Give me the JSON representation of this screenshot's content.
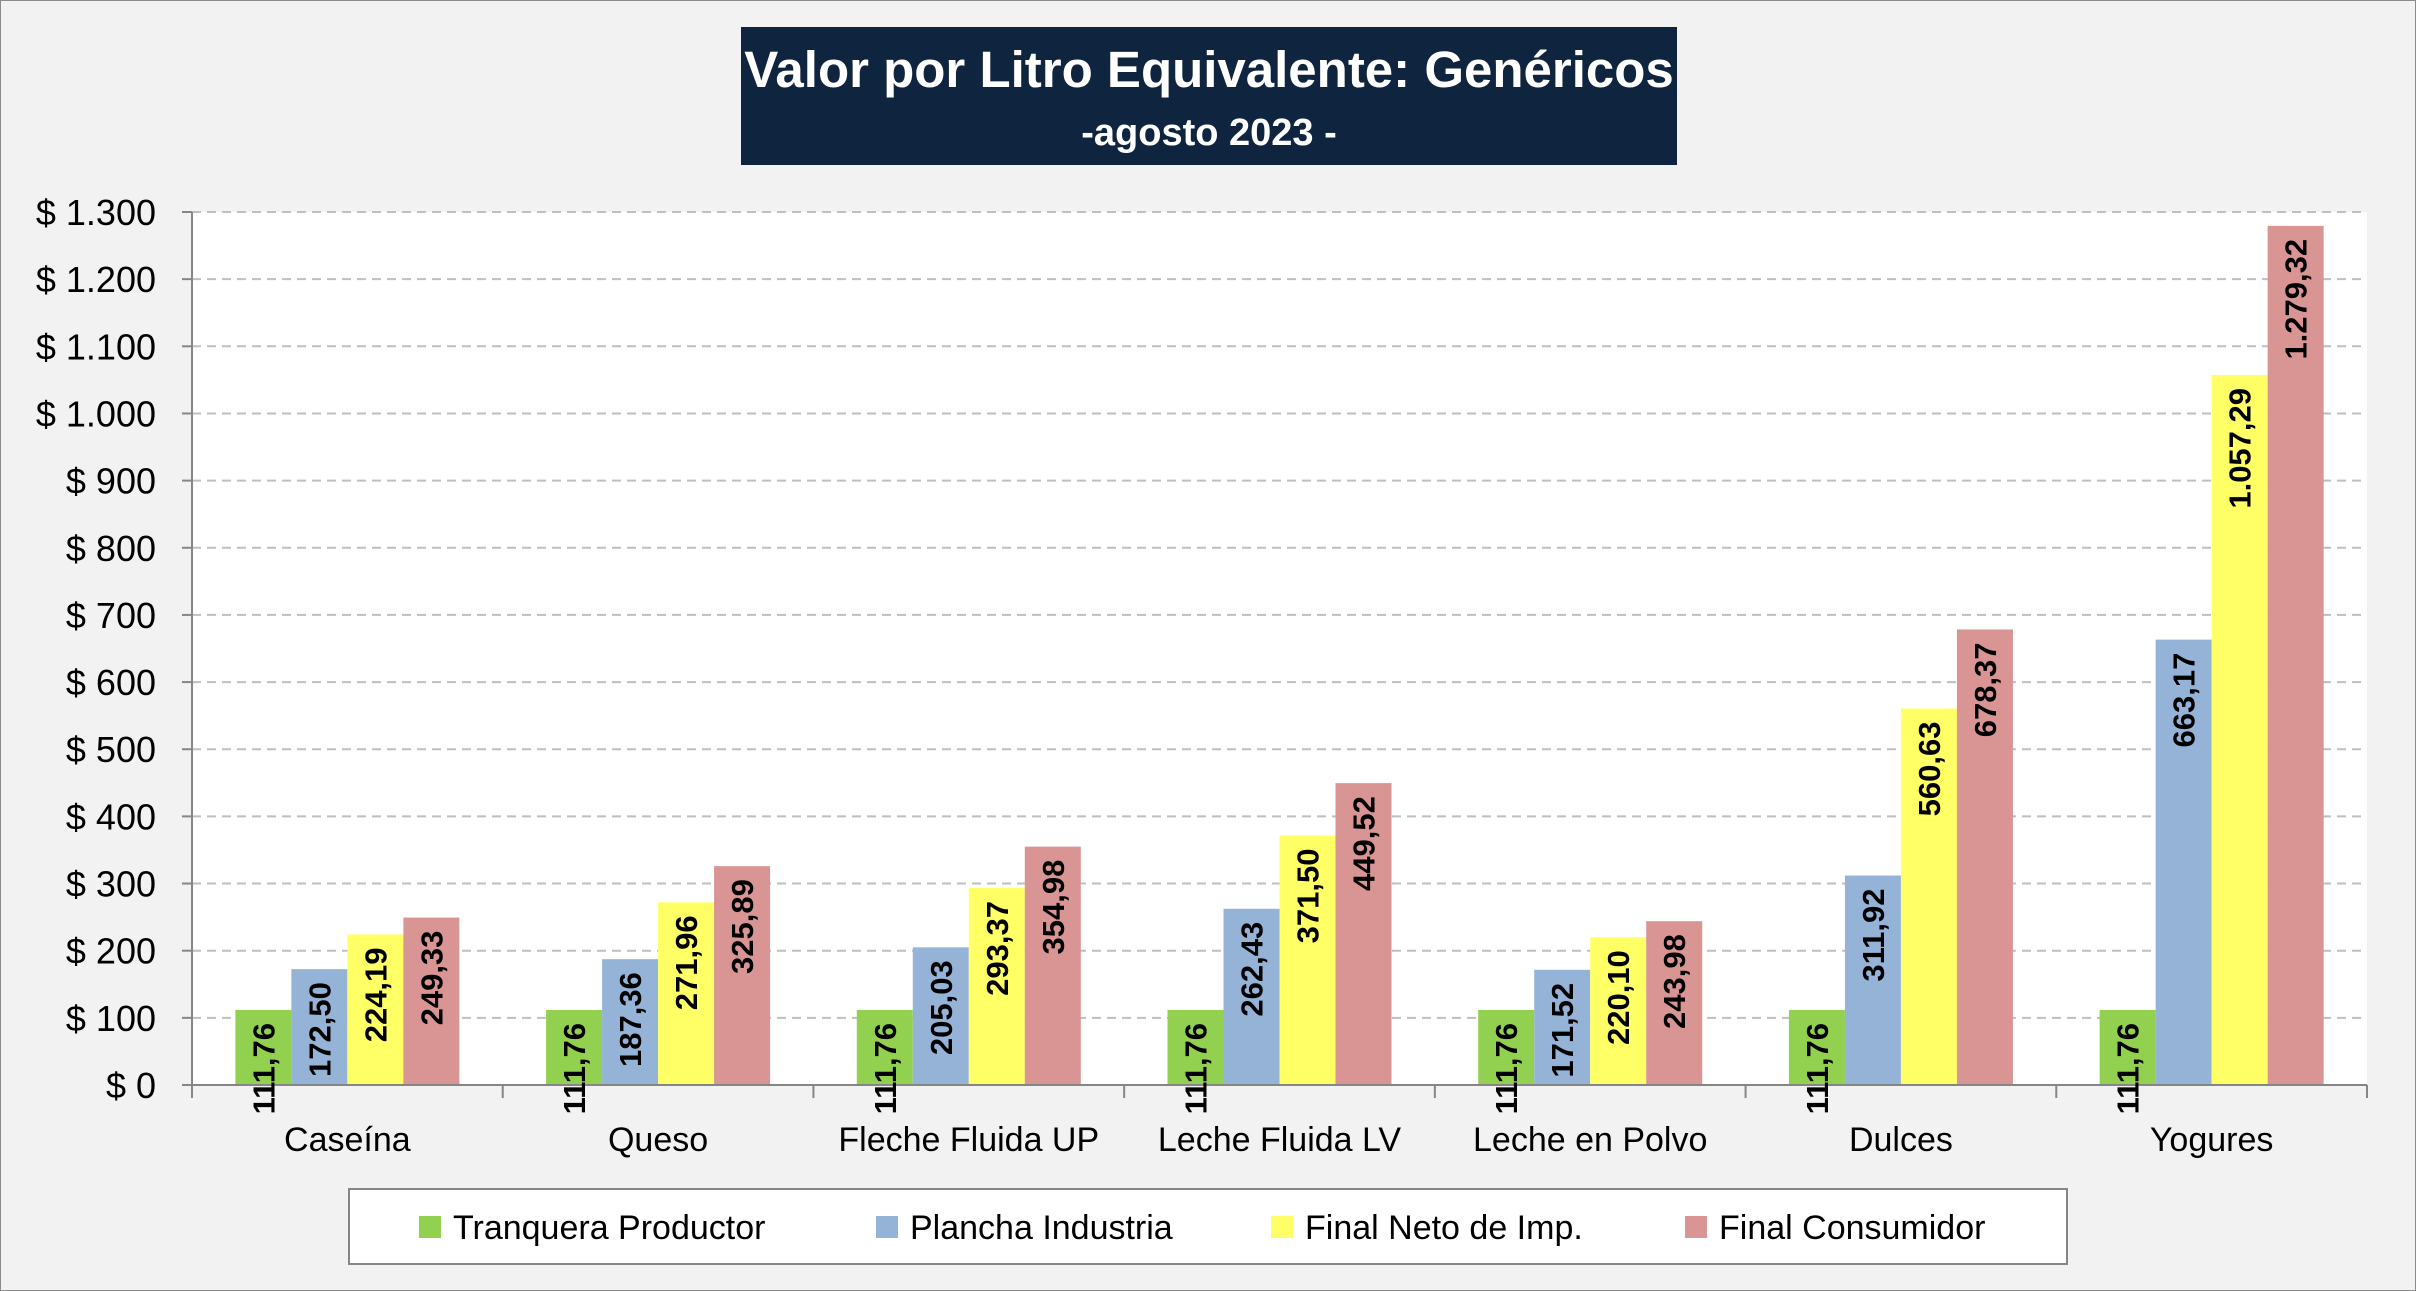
{
  "chart_data": {
    "type": "bar",
    "title": "Valor por Litro Equivalente: Genéricos",
    "subtitle": "-agosto 2023 -",
    "xlabel": "",
    "ylabel": "",
    "ylim": [
      0,
      1300
    ],
    "y_tick_labels": [
      "$ 0",
      "$ 100",
      "$ 200",
      "$ 300",
      "$ 400",
      "$ 500",
      "$ 600",
      "$ 700",
      "$ 800",
      "$ 900",
      "$ 1.000",
      "$ 1.100",
      "$ 1.200",
      "$ 1.300"
    ],
    "y_tick_values": [
      0,
      100,
      200,
      300,
      400,
      500,
      600,
      700,
      800,
      900,
      1000,
      1100,
      1200,
      1300
    ],
    "grid": true,
    "legend_position": "bottom",
    "categories": [
      "Caseína",
      "Queso",
      "Fleche Fluida UP",
      "Leche Fluida LV",
      "Leche en Polvo",
      "Dulces",
      "Yogures"
    ],
    "series": [
      {
        "name": "Tranquera Productor",
        "color": "#92d050",
        "values": [
          111.76,
          111.76,
          111.76,
          111.76,
          111.76,
          111.76,
          111.76
        ],
        "labels": [
          "111,76",
          "111,76",
          "111,76",
          "111,76",
          "111,76",
          "111,76",
          "111,76"
        ]
      },
      {
        "name": "Plancha Industria",
        "color": "#95b3d7",
        "values": [
          172.5,
          187.36,
          205.03,
          262.43,
          171.52,
          311.92,
          663.17
        ],
        "labels": [
          "172,50",
          "187,36",
          "205,03",
          "262,43",
          "171,52",
          "311,92",
          "663,17"
        ]
      },
      {
        "name": "Final Neto de Imp.",
        "color": "#ffff66",
        "values": [
          224.19,
          271.96,
          293.37,
          371.5,
          220.1,
          560.63,
          1057.29
        ],
        "labels": [
          "224,19",
          "271,96",
          "293,37",
          "371,50",
          "220,10",
          "560,63",
          "1.057,29"
        ]
      },
      {
        "name": "Final Consumidor",
        "color": "#d99594",
        "values": [
          249.33,
          325.89,
          354.98,
          449.52,
          243.98,
          678.37,
          1279.32
        ],
        "labels": [
          "249,33",
          "325,89",
          "354,98",
          "449,52",
          "243,98",
          "678,37",
          "1.279,32"
        ]
      }
    ]
  },
  "colors": {
    "title_background": "#0f243e",
    "title_text": "#ffffff",
    "chart_background": "#f2f2f2",
    "plot_background": "#ffffff",
    "gridline": "#bfbfbf",
    "axis": "#868686"
  }
}
